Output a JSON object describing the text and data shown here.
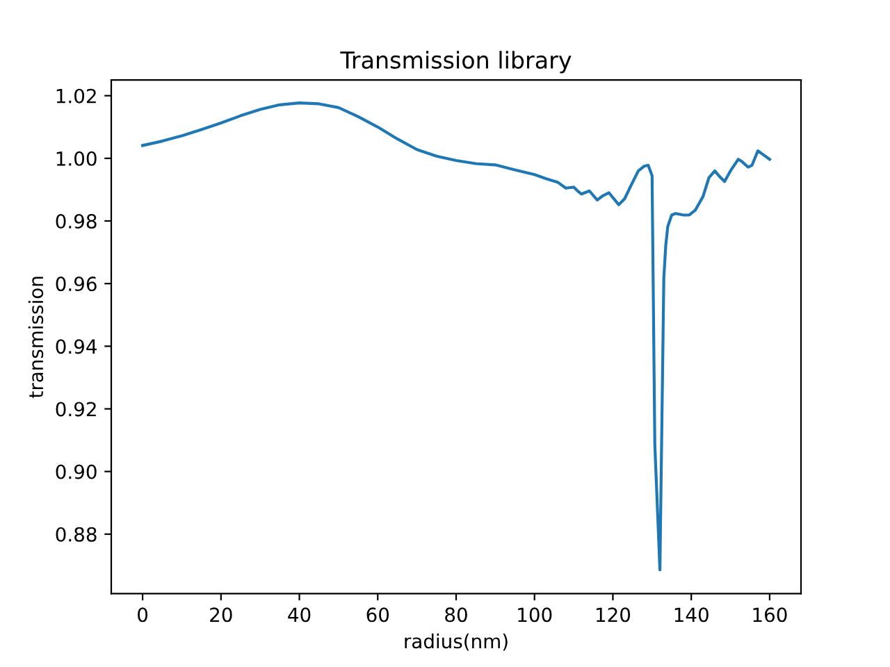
{
  "chart_data": {
    "type": "line",
    "title": "Transmission library",
    "xlabel": "radius(nm)",
    "ylabel": "transmission",
    "x": [
      0,
      5,
      10,
      15,
      20,
      25,
      30,
      35,
      40,
      45,
      50,
      55,
      60,
      65,
      70,
      75,
      80,
      85,
      90,
      95,
      100,
      103,
      106,
      108,
      110,
      111,
      112,
      114,
      116,
      117.5,
      119,
      121.5,
      123,
      125,
      126.5,
      128,
      129,
      130,
      130.7,
      132,
      133,
      133.5,
      134,
      135,
      136,
      138,
      139.5,
      141,
      143,
      144.5,
      146,
      147,
      148.5,
      150,
      152,
      153,
      154.5,
      155.5,
      157,
      158,
      160
    ],
    "series": [
      {
        "color": "#1f77b4",
        "values": [
          1.0041,
          1.0055,
          1.0072,
          1.0092,
          1.0113,
          1.0136,
          1.0156,
          1.0171,
          1.0177,
          1.0174,
          1.0162,
          1.0133,
          1.01,
          1.0062,
          1.0028,
          1.0007,
          0.9993,
          0.9983,
          0.9979,
          0.9963,
          0.9948,
          0.9935,
          0.9923,
          0.9905,
          0.9908,
          0.9896,
          0.9886,
          0.9896,
          0.9867,
          0.9881,
          0.989,
          0.9852,
          0.9871,
          0.9923,
          0.996,
          0.9975,
          0.9978,
          0.9945,
          0.9086,
          0.8686,
          0.9619,
          0.9723,
          0.9782,
          0.9819,
          0.9824,
          0.9819,
          0.9819,
          0.9834,
          0.9878,
          0.9938,
          0.996,
          0.9945,
          0.9926,
          0.996,
          0.9997,
          0.9989,
          0.9972,
          0.9978,
          1.0024,
          1.0015,
          0.9997
        ]
      }
    ],
    "xlim": [
      -8,
      168
    ],
    "ylim": [
      0.861,
      1.025
    ],
    "xticks": [
      0,
      20,
      40,
      60,
      80,
      100,
      120,
      140,
      160
    ],
    "yticks": [
      0.88,
      {
        "value": 0.9,
        "label": "0.90"
      },
      0.92,
      0.94,
      0.96,
      0.98,
      {
        "value": 1.0,
        "label": "1.00"
      },
      1.02
    ],
    "marker": "none",
    "line_style": "solid"
  }
}
